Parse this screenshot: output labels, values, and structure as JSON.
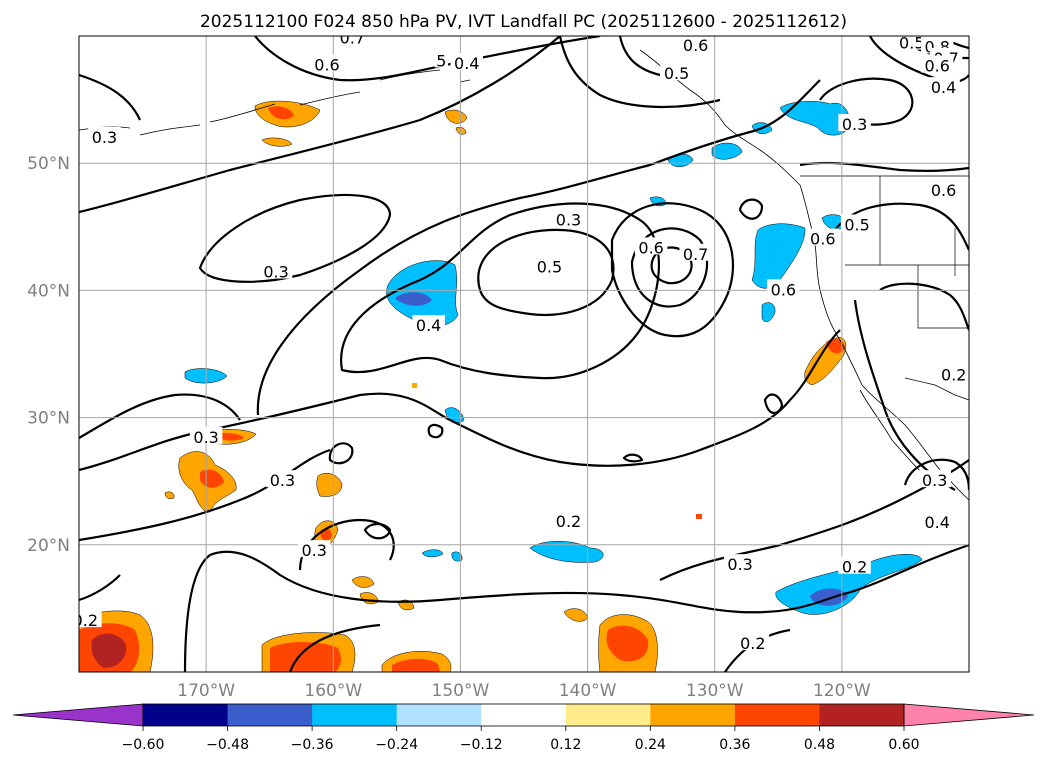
{
  "title": "2025112100 F024 850 hPa PV, IVT Landfall PC (2025112600 - 2025112612)",
  "map": {
    "lon_range": [
      -180,
      -110
    ],
    "lat_range": [
      10,
      60
    ],
    "lat_labels": [
      {
        "lat": 50,
        "text": "50°N"
      },
      {
        "lat": 40,
        "text": "40°N"
      },
      {
        "lat": 30,
        "text": "30°N"
      },
      {
        "lat": 20,
        "text": "20°N"
      }
    ],
    "lon_labels": [
      {
        "lon": -170,
        "text": "170°W"
      },
      {
        "lon": -160,
        "text": "160°W"
      },
      {
        "lon": -150,
        "text": "150°W"
      },
      {
        "lon": -140,
        "text": "140°W"
      },
      {
        "lon": -130,
        "text": "130°W"
      },
      {
        "lon": -120,
        "text": "120°W"
      }
    ],
    "gridlines": true,
    "contour_labels": [
      {
        "lon": -178.0,
        "lat": 52.0,
        "text": "0.3"
      },
      {
        "lon": -160.5,
        "lat": 57.7,
        "text": "0.6"
      },
      {
        "lon": -149.5,
        "lat": 57.8,
        "text": "0.4"
      },
      {
        "lon": -151.5,
        "lat": 58.0,
        "text": "5"
      },
      {
        "lon": -158.5,
        "lat": 59.8,
        "text": "0.7"
      },
      {
        "lon": -133.0,
        "lat": 57.0,
        "text": "0.5"
      },
      {
        "lon": -131.5,
        "lat": 59.2,
        "text": "0.6"
      },
      {
        "lon": -114.5,
        "lat": 59.4,
        "text": "0.5"
      },
      {
        "lon": -112.5,
        "lat": 59.1,
        "text": "0.8"
      },
      {
        "lon": -111.8,
        "lat": 58.2,
        "text": "0.7"
      },
      {
        "lon": -112.5,
        "lat": 57.6,
        "text": "0.6"
      },
      {
        "lon": -112.0,
        "lat": 55.9,
        "text": "0.4"
      },
      {
        "lon": -119.0,
        "lat": 53.0,
        "text": "0.3"
      },
      {
        "lon": -112.0,
        "lat": 47.8,
        "text": "0.6"
      },
      {
        "lon": -118.8,
        "lat": 45.1,
        "text": "0.5"
      },
      {
        "lon": -121.5,
        "lat": 44.0,
        "text": "0.6"
      },
      {
        "lon": -141.5,
        "lat": 45.5,
        "text": "0.3"
      },
      {
        "lon": -135.0,
        "lat": 43.3,
        "text": "0.6"
      },
      {
        "lon": -131.5,
        "lat": 42.8,
        "text": "0.7"
      },
      {
        "lon": -143.0,
        "lat": 41.8,
        "text": "0.5"
      },
      {
        "lon": -124.6,
        "lat": 40.0,
        "text": "0.6"
      },
      {
        "lon": -164.5,
        "lat": 41.4,
        "text": "0.3"
      },
      {
        "lon": -152.5,
        "lat": 37.2,
        "text": "0.4"
      },
      {
        "lon": -111.2,
        "lat": 33.3,
        "text": "0.2"
      },
      {
        "lon": -170.0,
        "lat": 28.4,
        "text": "0.3"
      },
      {
        "lon": -164.0,
        "lat": 25.0,
        "text": "0.3"
      },
      {
        "lon": -141.5,
        "lat": 21.8,
        "text": "0.2"
      },
      {
        "lon": -161.5,
        "lat": 19.5,
        "text": "0.3"
      },
      {
        "lon": -112.7,
        "lat": 25.0,
        "text": "0.3"
      },
      {
        "lon": -112.5,
        "lat": 21.7,
        "text": "0.4"
      },
      {
        "lon": -128.0,
        "lat": 18.4,
        "text": "0.3"
      },
      {
        "lon": -119.0,
        "lat": 18.2,
        "text": "0.2"
      },
      {
        "lon": -179.5,
        "lat": 14.0,
        "text": "0.2"
      },
      {
        "lon": -127.0,
        "lat": 12.2,
        "text": "0.2"
      }
    ]
  },
  "colorbar": {
    "levels": [
      -0.6,
      -0.48,
      -0.36,
      -0.24,
      -0.12,
      0.12,
      0.24,
      0.36,
      0.48,
      0.6
    ],
    "tick_labels": [
      "−0.60",
      "−0.48",
      "−0.36",
      "−0.24",
      "−0.12",
      "0.12",
      "0.24",
      "0.36",
      "0.48",
      "0.60"
    ],
    "colors": [
      "#9933cc",
      "#00008b",
      "#3a5fcd",
      "#00bfff",
      "#b0e2ff",
      "#ffffff",
      "#ffec8b",
      "#ffa500",
      "#ff4500",
      "#b22222",
      "#ff82ab"
    ],
    "extend": "both"
  }
}
